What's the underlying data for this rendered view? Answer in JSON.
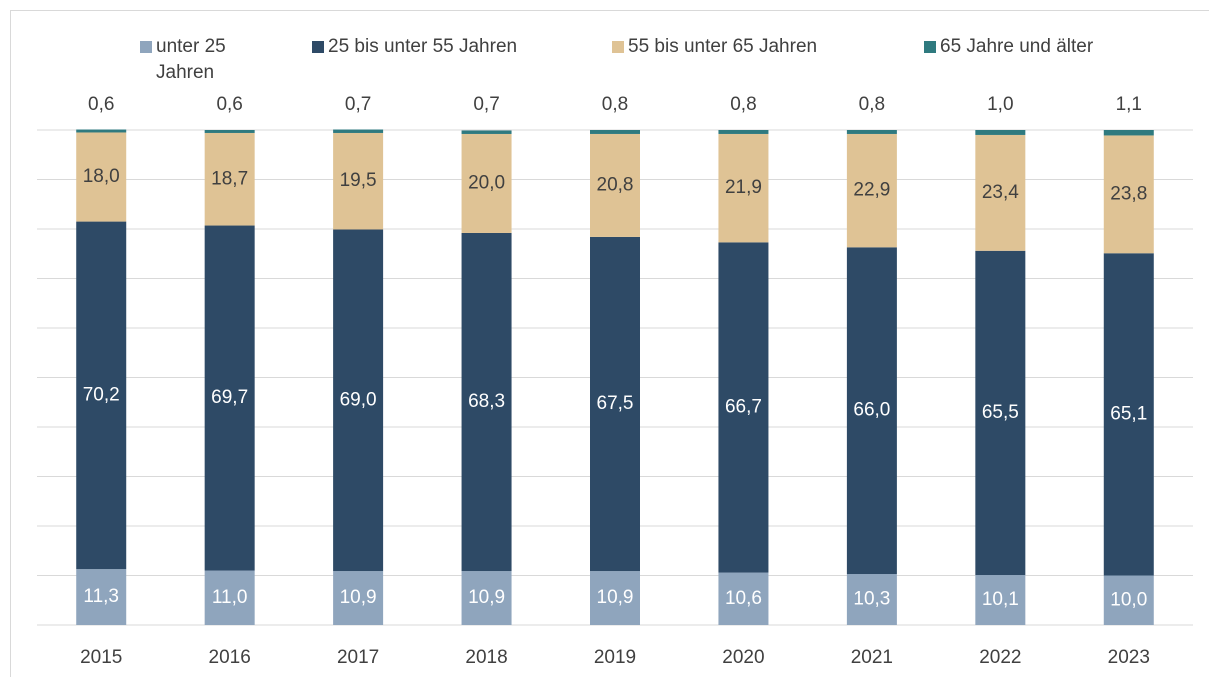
{
  "chart_data": {
    "type": "stacked_bar",
    "categories": [
      "2015",
      "2016",
      "2017",
      "2018",
      "2019",
      "2020",
      "2021",
      "2022",
      "2023"
    ],
    "series": [
      {
        "name": "unter 25 Jahren",
        "color": "#8fa5bd",
        "values": [
          11.3,
          11.0,
          10.9,
          10.9,
          10.9,
          10.6,
          10.3,
          10.1,
          10.0
        ],
        "value_labels": [
          "11,3",
          "11,0",
          "10,9",
          "10,9",
          "10,9",
          "10,6",
          "10,3",
          "10,1",
          "10,0"
        ]
      },
      {
        "name": "25 bis unter 55 Jahren",
        "color": "#2e4a66",
        "values": [
          70.2,
          69.7,
          69.0,
          68.3,
          67.5,
          66.7,
          66.0,
          65.5,
          65.1
        ],
        "value_labels": [
          "70,2",
          "69,7",
          "69,0",
          "68,3",
          "67,5",
          "66,7",
          "66,0",
          "65,5",
          "65,1"
        ]
      },
      {
        "name": "55 bis unter 65 Jahren",
        "color": "#dfc395",
        "values": [
          18.0,
          18.7,
          19.5,
          20.0,
          20.8,
          21.9,
          22.9,
          23.4,
          23.8
        ],
        "value_labels": [
          "18,0",
          "18,7",
          "19,5",
          "20,0",
          "20,8",
          "21,9",
          "22,9",
          "23,4",
          "23,8"
        ]
      },
      {
        "name": "65 Jahre und älter",
        "color": "#2f7a7f",
        "values": [
          0.6,
          0.6,
          0.7,
          0.7,
          0.8,
          0.8,
          0.8,
          1.0,
          1.1
        ],
        "value_labels": [
          "0,6",
          "0,6",
          "0,7",
          "0,7",
          "0,8",
          "0,8",
          "0,8",
          "1,0",
          "1,1"
        ]
      }
    ],
    "ylim": [
      0,
      100
    ],
    "yticks": [
      0,
      10,
      20,
      30,
      40,
      50,
      60,
      70,
      80,
      90,
      100
    ],
    "grid": true
  }
}
